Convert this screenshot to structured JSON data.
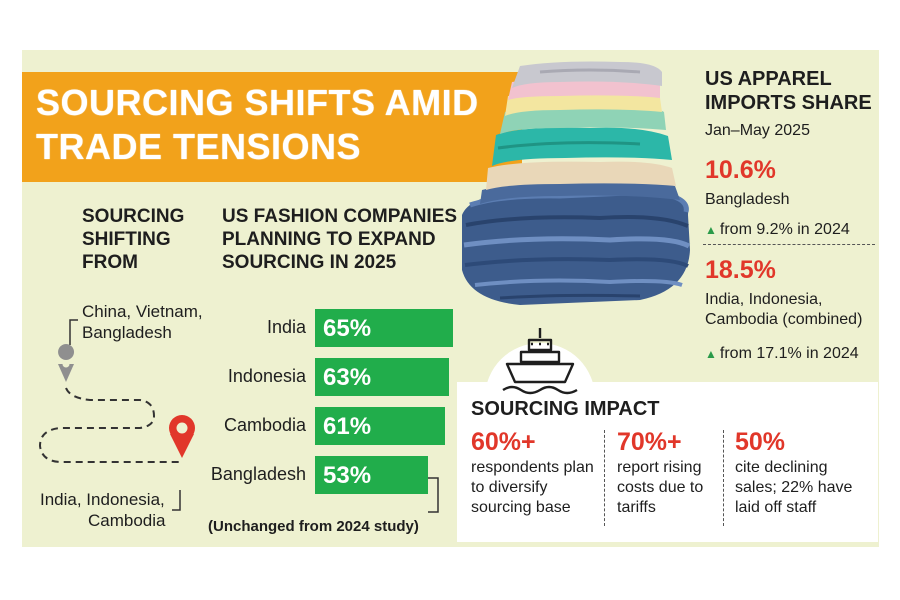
{
  "banner": {
    "line1": "SOURCING SHIFTS AMID",
    "line2": "TRADE TENSIONS"
  },
  "shifting": {
    "title_lines": [
      "SOURCING",
      "SHIFTING",
      "FROM"
    ],
    "origin_lines": [
      "China, Vietnam,",
      "Bangladesh"
    ],
    "destination_lines": [
      "India, Indonesia,",
      "Cambodia"
    ]
  },
  "expand": {
    "title_lines": [
      "US FASHION COMPANIES",
      "PLANNING TO EXPAND",
      "SOURCING IN 2025"
    ]
  },
  "chart_data": {
    "type": "bar",
    "title": "US FASHION COMPANIES PLANNING TO EXPAND SOURCING IN 2025",
    "categories": [
      "India",
      "Indonesia",
      "Cambodia",
      "Bangladesh"
    ],
    "values": [
      65,
      63,
      61,
      53
    ],
    "value_labels": [
      "65%",
      "63%",
      "61%",
      "53%"
    ],
    "unit": "%",
    "orientation": "horizontal",
    "annotation": "(Unchanged from 2024 study)",
    "bar_color": "#21ad4b"
  },
  "imports": {
    "title_lines": [
      "US APPAREL",
      "IMPORTS SHARE"
    ],
    "period": "Jan–May 2025",
    "bangladesh": {
      "value": "10.6%",
      "label": "Bangladesh",
      "change": "from 9.2% in 2024"
    },
    "combined": {
      "value": "18.5%",
      "label_lines": [
        "India, Indonesia,",
        "Cambodia (combined)"
      ],
      "change": "from 17.1% in 2024"
    }
  },
  "impact": {
    "title": "SOURCING IMPACT",
    "items": [
      {
        "pct": "60%+",
        "desc": "respondents plan to diversify sourcing base"
      },
      {
        "pct": "70%+",
        "desc": "report rising costs due to tariffs"
      },
      {
        "pct": "50%",
        "desc": "cite declining sales; 22% have laid off staff"
      }
    ]
  },
  "colors": {
    "accent_orange": "#f2a21b",
    "bar_green": "#21ad4b",
    "highlight_red": "#e1372a",
    "panel_bg": "#eef1d0"
  },
  "icons": [
    "ship-icon",
    "map-pin-icon",
    "map-pin-red-icon",
    "arrow-up-icon",
    "clothes-stack-image"
  ]
}
